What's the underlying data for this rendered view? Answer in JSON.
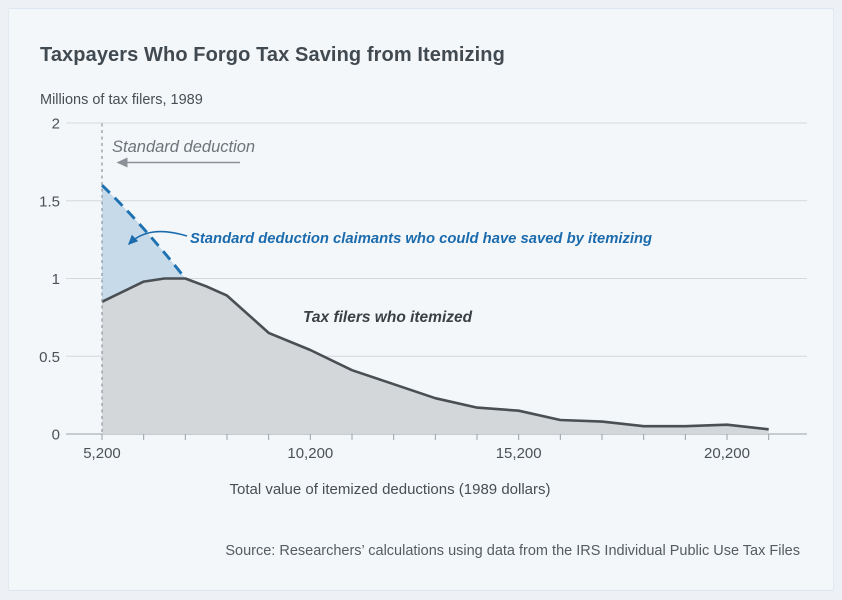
{
  "card": {
    "title": "Taxpayers Who Forgo Tax Saving from Itemizing",
    "source": "Source: Researchers’ calculations using data from the IRS Individual Public Use Tax Files"
  },
  "labels": {
    "standard_deduction": "Standard deduction",
    "claimants": "Standard deduction claimants who could have saved by itemizing",
    "itemized": "Tax filers who itemized"
  },
  "chart_data": {
    "type": "area",
    "title": "Taxpayers Who Forgo Tax Saving from Itemizing",
    "ylabel": "Millions of tax filers, 1989",
    "xlabel": "Total value of itemized deductions (1989 dollars)",
    "xlim": [
      5200,
      21200
    ],
    "ylim": [
      0,
      2
    ],
    "grid": true,
    "legend_position": "none",
    "x_minor_tick_step": 1000,
    "y_ticks": [
      {
        "v": 0,
        "label": "0"
      },
      {
        "v": 0.5,
        "label": "0.5"
      },
      {
        "v": 1,
        "label": "1"
      },
      {
        "v": 1.5,
        "label": "1.5"
      },
      {
        "v": 2,
        "label": "2"
      }
    ],
    "x_ticks_labeled": [
      {
        "v": 5200,
        "label": "5,200"
      },
      {
        "v": 10200,
        "label": "10,200"
      },
      {
        "v": 15200,
        "label": "15,200"
      },
      {
        "v": 20200,
        "label": "20,200"
      }
    ],
    "series": [
      {
        "name": "Tax filers who itemized",
        "type": "area",
        "line_color": "#4a4f53",
        "fill_color": "#d4d7da",
        "x": [
          5200,
          6200,
          6700,
          7200,
          7700,
          8200,
          9200,
          10200,
          11200,
          12200,
          13200,
          14200,
          15200,
          16200,
          17200,
          18200,
          19200,
          20200,
          21200
        ],
        "values": [
          0.85,
          0.98,
          1.0,
          1.0,
          0.95,
          0.89,
          0.65,
          0.54,
          0.41,
          0.32,
          0.23,
          0.17,
          0.15,
          0.09,
          0.08,
          0.05,
          0.05,
          0.06,
          0.03
        ]
      },
      {
        "name": "Standard deduction claimants who could have saved by itemizing",
        "type": "dashed-line-with-gap-fill",
        "line_color": "#1e72b2",
        "fill_color": "#c6daea",
        "x": [
          5200,
          6200,
          7200
        ],
        "values": [
          1.6,
          1.32,
          1.0
        ]
      }
    ],
    "reference_line": {
      "x": 5200,
      "label": "Standard deduction",
      "style": "vertical dashed"
    }
  }
}
